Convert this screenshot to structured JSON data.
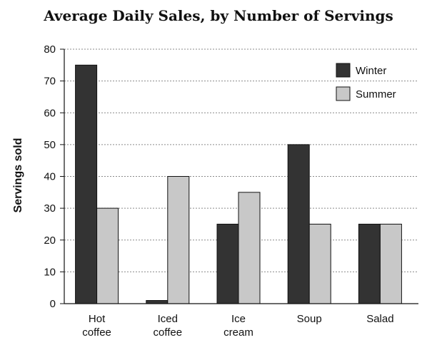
{
  "chart_data": {
    "type": "bar",
    "title": "Average Daily Sales, by Number of Servings",
    "xlabel": "",
    "ylabel": "Servings sold",
    "ylim": [
      0,
      80
    ],
    "yticks": [
      0,
      10,
      20,
      30,
      40,
      50,
      60,
      70,
      80
    ],
    "categories": [
      [
        "Hot",
        "coffee"
      ],
      [
        "Iced",
        "coffee"
      ],
      [
        "Ice",
        "cream"
      ],
      [
        "Soup"
      ],
      [
        "Salad"
      ]
    ],
    "series": [
      {
        "name": "Winter",
        "values": [
          75,
          1,
          25,
          50,
          25
        ],
        "color": "#333333"
      },
      {
        "name": "Summer",
        "values": [
          30,
          40,
          35,
          25,
          25
        ],
        "color": "#c8c8c8"
      }
    ],
    "grid": true,
    "legend_position": "top-right"
  }
}
